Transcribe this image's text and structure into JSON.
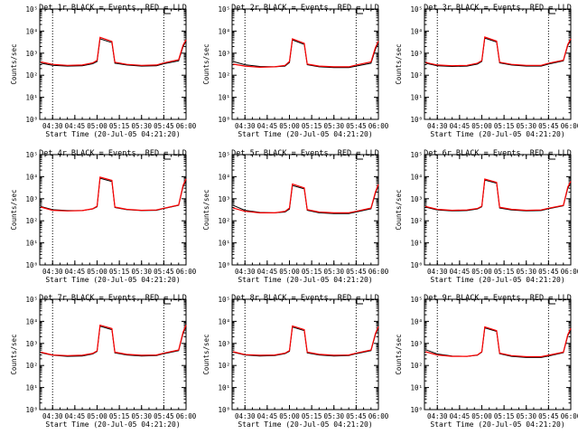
{
  "colors": {
    "background": "#ffffff",
    "axes": "#000000",
    "events": "#000000",
    "lld": "#ff0000"
  },
  "shared": {
    "xlabel": "Start Time (20-Jul-05 04:21:20)",
    "ylabel": "Counts/sec",
    "x_ticks": [
      "04:30",
      "04:45",
      "05:00",
      "05:15",
      "05:30",
      "05:45",
      "06:00"
    ],
    "y_ticks": [
      "10^0",
      "10^1",
      "10^2",
      "10^3",
      "10^4",
      "10^5"
    ],
    "y_scale": "log",
    "y_range": [
      1,
      100000
    ],
    "x_range": [
      "04:21:20",
      "06:00:00"
    ],
    "dotted_markers": [
      "04:30",
      "05:45"
    ],
    "legend_mark": "top-right corner bracket"
  },
  "chart_data": [
    {
      "type": "line",
      "title": "Det 1r BLACK = Events, RED = LLD",
      "x": [
        "04:22",
        "04:30",
        "04:40",
        "04:50",
        "04:57",
        "05:00",
        "05:02",
        "05:10",
        "05:12",
        "05:20",
        "05:30",
        "05:40",
        "05:45",
        "05:55",
        "05:58",
        "06:00"
      ],
      "series": [
        {
          "name": "Events",
          "color": "#000000",
          "values": [
            350,
            280,
            260,
            270,
            330,
            420,
            4500,
            3000,
            350,
            290,
            260,
            270,
            330,
            450,
            2000,
            3500
          ]
        },
        {
          "name": "LLD",
          "color": "#ff0000",
          "values": [
            400,
            310,
            280,
            290,
            360,
            470,
            5200,
            3400,
            390,
            310,
            280,
            290,
            360,
            500,
            2300,
            4000
          ]
        }
      ]
    },
    {
      "type": "line",
      "title": "Det 2r BLACK = Events, RED = LLD",
      "x": [
        "04:22",
        "04:30",
        "04:40",
        "04:50",
        "04:57",
        "05:00",
        "05:02",
        "05:10",
        "05:12",
        "05:20",
        "05:30",
        "05:40",
        "05:45",
        "05:55",
        "05:58",
        "06:00"
      ],
      "series": [
        {
          "name": "Events",
          "color": "#000000",
          "values": [
            420,
            300,
            250,
            240,
            260,
            380,
            4000,
            2500,
            300,
            240,
            220,
            220,
            260,
            350,
            1500,
            3000
          ]
        },
        {
          "name": "LLD",
          "color": "#ff0000",
          "values": [
            320,
            260,
            230,
            240,
            280,
            420,
            4500,
            2800,
            320,
            260,
            240,
            240,
            290,
            400,
            1800,
            3500
          ]
        }
      ]
    },
    {
      "type": "line",
      "title": "Det 3r BLACK = Events, RED = LLD",
      "x": [
        "04:22",
        "04:30",
        "04:40",
        "04:50",
        "04:57",
        "05:00",
        "05:02",
        "05:10",
        "05:12",
        "05:20",
        "05:30",
        "05:40",
        "05:45",
        "05:55",
        "05:58",
        "06:00"
      ],
      "series": [
        {
          "name": "Events",
          "color": "#000000",
          "values": [
            350,
            270,
            250,
            260,
            320,
            420,
            4800,
            3200,
            360,
            290,
            260,
            260,
            320,
            450,
            2200,
            4000
          ]
        },
        {
          "name": "LLD",
          "color": "#ff0000",
          "values": [
            380,
            290,
            270,
            280,
            350,
            460,
            5400,
            3500,
            390,
            310,
            280,
            280,
            350,
            480,
            2500,
            4500
          ]
        }
      ]
    },
    {
      "type": "line",
      "title": "Det 4r BLACK = Events, RED = LLD",
      "x": [
        "04:22",
        "04:30",
        "04:40",
        "04:50",
        "04:57",
        "05:00",
        "05:02",
        "05:10",
        "05:12",
        "05:20",
        "05:30",
        "05:40",
        "05:45",
        "05:55",
        "05:58",
        "06:00"
      ],
      "series": [
        {
          "name": "Events",
          "color": "#000000",
          "values": [
            450,
            320,
            290,
            290,
            340,
            430,
            8500,
            6000,
            400,
            320,
            290,
            300,
            360,
            500,
            3500,
            7000
          ]
        },
        {
          "name": "LLD",
          "color": "#ff0000",
          "values": [
            420,
            300,
            280,
            290,
            350,
            460,
            9500,
            6800,
            420,
            330,
            300,
            310,
            370,
            520,
            4000,
            8000
          ]
        }
      ]
    },
    {
      "type": "line",
      "title": "Det 5r BLACK = Events, RED = LLD",
      "x": [
        "04:22",
        "04:30",
        "04:40",
        "04:50",
        "04:57",
        "05:00",
        "05:02",
        "05:10",
        "05:12",
        "05:20",
        "05:30",
        "05:40",
        "05:45",
        "05:55",
        "05:58",
        "06:00"
      ],
      "series": [
        {
          "name": "Events",
          "color": "#000000",
          "values": [
            500,
            300,
            240,
            230,
            250,
            340,
            4000,
            2800,
            300,
            230,
            210,
            210,
            250,
            350,
            1800,
            4000
          ]
        },
        {
          "name": "LLD",
          "color": "#ff0000",
          "values": [
            380,
            270,
            230,
            230,
            270,
            380,
            4600,
            3100,
            320,
            250,
            230,
            230,
            270,
            380,
            2000,
            4500
          ]
        }
      ]
    },
    {
      "type": "line",
      "title": "Det 6r BLACK = Events, RED = LLD",
      "x": [
        "04:22",
        "04:30",
        "04:40",
        "04:50",
        "04:57",
        "05:00",
        "05:02",
        "05:10",
        "05:12",
        "05:20",
        "05:30",
        "05:40",
        "05:45",
        "05:55",
        "05:58",
        "06:00"
      ],
      "series": [
        {
          "name": "Events",
          "color": "#000000",
          "values": [
            420,
            310,
            280,
            290,
            340,
            430,
            7000,
            5000,
            380,
            310,
            280,
            290,
            350,
            480,
            3000,
            5500
          ]
        },
        {
          "name": "LLD",
          "color": "#ff0000",
          "values": [
            450,
            330,
            300,
            310,
            360,
            460,
            7800,
            5500,
            410,
            330,
            300,
            310,
            370,
            500,
            3400,
            6200
          ]
        }
      ]
    },
    {
      "type": "line",
      "title": "Det 7r BLACK = Events, RED = LLD",
      "x": [
        "04:22",
        "04:30",
        "04:40",
        "04:50",
        "04:57",
        "05:00",
        "05:02",
        "05:10",
        "05:12",
        "05:20",
        "05:30",
        "05:40",
        "05:45",
        "05:55",
        "05:58",
        "06:00"
      ],
      "series": [
        {
          "name": "Events",
          "color": "#000000",
          "values": [
            380,
            290,
            260,
            270,
            330,
            430,
            6000,
            4200,
            370,
            300,
            270,
            280,
            340,
            470,
            2800,
            6000
          ]
        },
        {
          "name": "LLD",
          "color": "#ff0000",
          "values": [
            400,
            300,
            280,
            290,
            350,
            460,
            6700,
            4700,
            400,
            320,
            290,
            300,
            360,
            500,
            3200,
            6800
          ]
        }
      ]
    },
    {
      "type": "line",
      "title": "Det 8r BLACK = Events, RED = LLD",
      "x": [
        "04:22",
        "04:30",
        "04:40",
        "04:50",
        "04:57",
        "05:00",
        "05:02",
        "05:10",
        "05:12",
        "05:20",
        "05:30",
        "05:40",
        "05:45",
        "05:55",
        "05:58",
        "06:00"
      ],
      "series": [
        {
          "name": "Events",
          "color": "#000000",
          "values": [
            400,
            300,
            270,
            280,
            340,
            440,
            5500,
            3800,
            370,
            300,
            270,
            280,
            340,
            470,
            2500,
            5200
          ]
        },
        {
          "name": "LLD",
          "color": "#ff0000",
          "values": [
            420,
            310,
            290,
            300,
            360,
            470,
            6200,
            4200,
            400,
            320,
            290,
            300,
            360,
            500,
            2800,
            5800
          ]
        }
      ]
    },
    {
      "type": "line",
      "title": "Det 9r BLACK = Events, RED = LLD",
      "x": [
        "04:22",
        "04:30",
        "04:40",
        "04:50",
        "04:57",
        "05:00",
        "05:02",
        "05:10",
        "05:12",
        "05:20",
        "05:30",
        "05:40",
        "05:45",
        "05:55",
        "05:58",
        "06:00"
      ],
      "series": [
        {
          "name": "Events",
          "color": "#000000",
          "values": [
            520,
            330,
            270,
            260,
            290,
            400,
            5000,
            3500,
            340,
            260,
            230,
            230,
            270,
            380,
            2200,
            4200
          ]
        },
        {
          "name": "LLD",
          "color": "#ff0000",
          "values": [
            420,
            300,
            260,
            260,
            300,
            420,
            5600,
            3800,
            360,
            280,
            250,
            250,
            290,
            400,
            2500,
            4800
          ]
        }
      ]
    }
  ]
}
